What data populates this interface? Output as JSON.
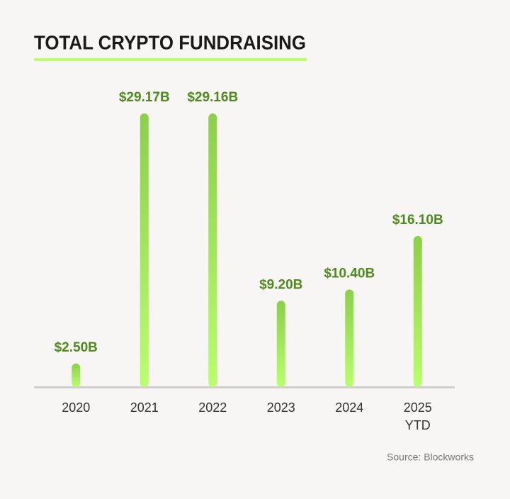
{
  "chart_data": {
    "type": "bar",
    "title": "TOTAL CRYPTO FUNDRAISING",
    "categories": [
      "2020",
      "2021",
      "2022",
      "2023",
      "2024",
      "2025 YTD"
    ],
    "values": [
      2.5,
      29.17,
      29.16,
      9.2,
      10.4,
      16.1
    ],
    "value_labels": [
      "$2.50B",
      "$29.17B",
      "$29.16B",
      "$9.20B",
      "$10.40B",
      "$16.10B"
    ],
    "color_top": "#8ccf4a",
    "color_bottom": "#b8ff6b",
    "label_color": "#4e8a1c",
    "source": "Source: Blockworks"
  }
}
